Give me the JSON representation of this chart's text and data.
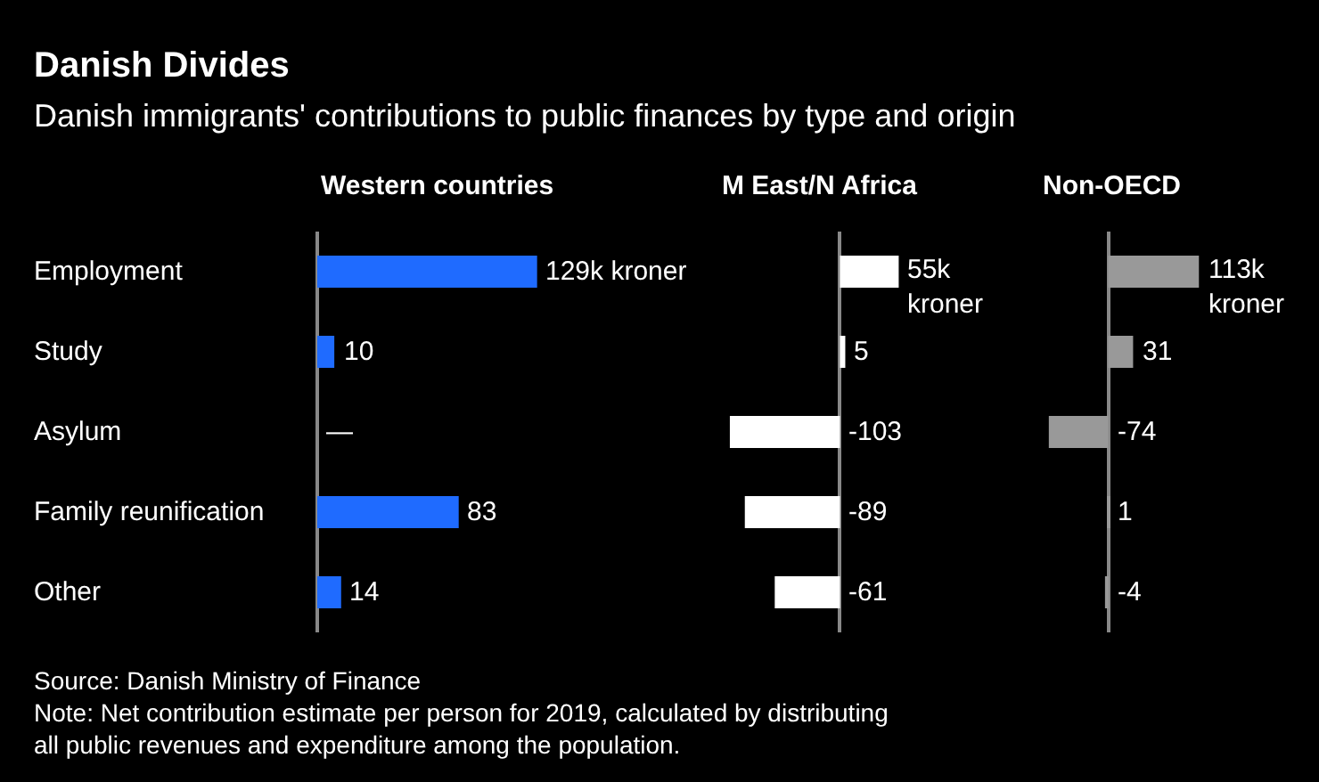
{
  "chart_data": [
    {
      "type": "other",
      "title": "Danish Divides",
      "subtitle": "Danish immigrants' contributions to public finances by type and origin",
      "annotations": [
        "Source: Danish Ministry of Finance",
        "Note: Net contribution estimate per person for 2019, calculated by distributing all public revenues and expenditure among the population."
      ]
    },
    {
      "type": "bar",
      "orientation": "horizontal",
      "title": "Western countries",
      "categories": [
        "Employment",
        "Study",
        "Asylum",
        "Family reunification",
        "Other"
      ],
      "values": [
        129,
        10,
        null,
        83,
        14
      ],
      "value_labels": [
        "129k kroner",
        "10",
        "—",
        "83",
        "14"
      ],
      "color": "#1f6bff",
      "tick_labels": "y"
    },
    {
      "type": "bar",
      "orientation": "horizontal",
      "title": "M East/N Africa",
      "values": [
        55,
        5,
        -103,
        -89,
        -61
      ],
      "value_labels": [
        "55k kroner",
        "5",
        "-103",
        "-89",
        "-61"
      ],
      "color": "#ffffff",
      "tick_labels": false
    },
    {
      "type": "bar",
      "orientation": "horizontal",
      "title": "Non-OECD",
      "values": [
        113,
        31,
        -74,
        1,
        -4
      ],
      "value_labels": [
        "113k kroner",
        "31",
        "-74",
        "1",
        "-4"
      ],
      "color": "#999999",
      "tick_labels": false
    }
  ]
}
